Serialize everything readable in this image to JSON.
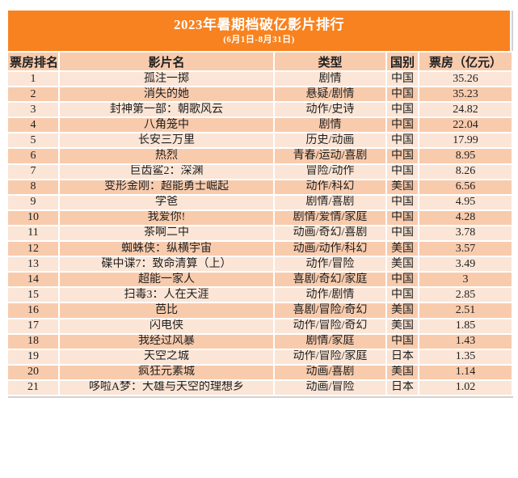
{
  "colors": {
    "accent": "#f8821f",
    "header_row_bg": "#f8cbad",
    "row_light": "#fbe5d6",
    "row_dark": "#f8cbad",
    "title_text": "#ffffff",
    "body_text": "#1f1f1f",
    "page_bg": "#ffffff"
  },
  "chart_data": {
    "type": "table",
    "title": "2023年暑期档破亿影片排行",
    "subtitle": "(6月1日-8月31日)",
    "unit_label": "亿元",
    "columns": [
      "票房排名",
      "影片名",
      "类型",
      "国别",
      "票房（亿元）"
    ],
    "rows": [
      {
        "rank": 1,
        "title": "孤注一掷",
        "genre": "剧情",
        "country": "中国",
        "box_office": 35.26
      },
      {
        "rank": 2,
        "title": "消失的她",
        "genre": "悬疑/剧情",
        "country": "中国",
        "box_office": 35.23
      },
      {
        "rank": 3,
        "title": "封神第一部：朝歌风云",
        "genre": "动作/史诗",
        "country": "中国",
        "box_office": 24.82
      },
      {
        "rank": 4,
        "title": "八角笼中",
        "genre": "剧情",
        "country": "中国",
        "box_office": 22.04
      },
      {
        "rank": 5,
        "title": "长安三万里",
        "genre": "历史/动画",
        "country": "中国",
        "box_office": 17.99
      },
      {
        "rank": 6,
        "title": "热烈",
        "genre": "青春/运动/喜剧",
        "country": "中国",
        "box_office": 8.95
      },
      {
        "rank": 7,
        "title": "巨齿鲨2：深渊",
        "genre": "冒险/动作",
        "country": "中国",
        "box_office": 8.26
      },
      {
        "rank": 8,
        "title": "变形金刚：超能勇士崛起",
        "genre": "动作/科幻",
        "country": "美国",
        "box_office": 6.56
      },
      {
        "rank": 9,
        "title": "学爸",
        "genre": "剧情/喜剧",
        "country": "中国",
        "box_office": 4.95
      },
      {
        "rank": 10,
        "title": "我爱你!",
        "genre": "剧情/爱情/家庭",
        "country": "中国",
        "box_office": 4.28
      },
      {
        "rank": 11,
        "title": "茶啊二中",
        "genre": "动画/奇幻/喜剧",
        "country": "中国",
        "box_office": 3.78
      },
      {
        "rank": 12,
        "title": "蜘蛛侠：纵横宇宙",
        "genre": "动画/动作/科幻",
        "country": "美国",
        "box_office": 3.57
      },
      {
        "rank": 13,
        "title": "碟中谍7：致命清算（上）",
        "genre": "动作/冒险",
        "country": "美国",
        "box_office": 3.49
      },
      {
        "rank": 14,
        "title": "超能一家人",
        "genre": "喜剧/奇幻/家庭",
        "country": "中国",
        "box_office": 3
      },
      {
        "rank": 15,
        "title": "扫毒3：人在天涯",
        "genre": "动作/剧情",
        "country": "中国",
        "box_office": 2.85
      },
      {
        "rank": 16,
        "title": "芭比",
        "genre": "喜剧/冒险/奇幻",
        "country": "美国",
        "box_office": 2.51
      },
      {
        "rank": 17,
        "title": "闪电侠",
        "genre": "动作/冒险/奇幻",
        "country": "美国",
        "box_office": 1.85
      },
      {
        "rank": 18,
        "title": "我经过风暴",
        "genre": "剧情/家庭",
        "country": "中国",
        "box_office": 1.43
      },
      {
        "rank": 19,
        "title": "天空之城",
        "genre": "动作/冒险/家庭",
        "country": "日本",
        "box_office": 1.35
      },
      {
        "rank": 20,
        "title": "疯狂元素城",
        "genre": "动画/喜剧",
        "country": "美国",
        "box_office": 1.14
      },
      {
        "rank": 21,
        "title": "哆啦A梦：大雄与天空的理想乡",
        "genre": "动画/冒险",
        "country": "日本",
        "box_office": 1.02
      }
    ]
  }
}
